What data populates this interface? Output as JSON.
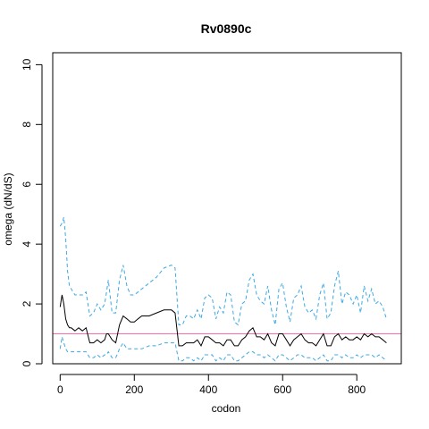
{
  "chart_data": {
    "type": "line",
    "title": "Rv0890c",
    "xlabel": "codon",
    "ylabel": "omega (dN/dS)",
    "xlim": [
      -20,
      920
    ],
    "ylim": [
      0,
      10.4
    ],
    "xticks": [
      0,
      200,
      400,
      600,
      800
    ],
    "yticks": [
      0,
      2,
      4,
      6,
      8,
      10
    ],
    "reference_line": {
      "y": 1,
      "color": "#ff6aa8"
    },
    "grid": false,
    "legend": "none",
    "series": [
      {
        "role": "upper",
        "color": "#3da9e4",
        "dashed": true,
        "x": [
          0,
          5,
          10,
          15,
          20,
          25,
          30,
          40,
          50,
          60,
          70,
          80,
          90,
          100,
          110,
          120,
          125,
          130,
          140,
          150,
          160,
          170,
          180,
          190,
          200,
          210,
          220,
          240,
          260,
          280,
          300,
          310,
          320,
          330,
          340,
          350,
          360,
          370,
          380,
          390,
          400,
          410,
          420,
          430,
          440,
          450,
          460,
          470,
          480,
          490,
          500,
          510,
          520,
          530,
          540,
          550,
          560,
          570,
          580,
          590,
          600,
          610,
          620,
          630,
          640,
          650,
          660,
          670,
          680,
          690,
          700,
          710,
          720,
          730,
          740,
          750,
          760,
          770,
          780,
          790,
          800,
          810,
          820,
          830,
          840,
          850,
          860,
          870,
          880
        ],
        "y": [
          4.6,
          4.7,
          4.9,
          4.2,
          3.1,
          2.6,
          2.5,
          2.3,
          2.3,
          2.3,
          2.4,
          1.6,
          1.7,
          2.0,
          1.8,
          2.0,
          2.4,
          2.8,
          1.7,
          1.7,
          2.8,
          3.3,
          2.6,
          2.3,
          2.3,
          2.4,
          2.5,
          2.7,
          2.9,
          3.2,
          3.3,
          3.2,
          1.3,
          1.3,
          1.6,
          1.6,
          1.5,
          1.8,
          1.5,
          2.2,
          2.3,
          2.2,
          1.5,
          1.9,
          1.7,
          2.4,
          2.3,
          1.4,
          1.3,
          2.0,
          2.1,
          2.8,
          3.0,
          2.3,
          2.1,
          2.0,
          2.6,
          1.8,
          1.3,
          2.5,
          2.7,
          1.9,
          1.4,
          2.2,
          2.3,
          2.6,
          1.9,
          1.7,
          1.8,
          1.5,
          2.3,
          2.7,
          1.5,
          1.7,
          2.6,
          3.1,
          2.0,
          2.4,
          2.3,
          2.0,
          2.3,
          1.7,
          2.6,
          2.1,
          2.5,
          2.0,
          2.1,
          1.9,
          1.5
        ]
      },
      {
        "role": "estimate",
        "color": "#000000",
        "dashed": false,
        "x": [
          0,
          5,
          10,
          15,
          20,
          25,
          30,
          40,
          50,
          60,
          70,
          80,
          90,
          100,
          110,
          120,
          125,
          130,
          140,
          150,
          160,
          170,
          180,
          190,
          200,
          210,
          220,
          240,
          260,
          280,
          300,
          310,
          320,
          330,
          340,
          350,
          360,
          370,
          380,
          390,
          400,
          410,
          420,
          430,
          440,
          450,
          460,
          470,
          480,
          490,
          500,
          510,
          520,
          530,
          540,
          550,
          560,
          570,
          580,
          590,
          600,
          610,
          620,
          630,
          640,
          650,
          660,
          670,
          680,
          690,
          700,
          710,
          720,
          730,
          740,
          750,
          760,
          770,
          780,
          790,
          800,
          810,
          820,
          830,
          840,
          850,
          860,
          870,
          880
        ],
        "y": [
          1.9,
          2.3,
          2.0,
          1.5,
          1.3,
          1.2,
          1.2,
          1.1,
          1.2,
          1.1,
          1.2,
          0.7,
          0.7,
          0.8,
          0.7,
          0.8,
          1.0,
          1.0,
          0.8,
          0.7,
          1.3,
          1.6,
          1.5,
          1.4,
          1.4,
          1.5,
          1.6,
          1.6,
          1.7,
          1.8,
          1.8,
          1.7,
          0.6,
          0.6,
          0.7,
          0.7,
          0.7,
          0.8,
          0.6,
          0.9,
          0.9,
          0.8,
          0.7,
          0.7,
          0.6,
          0.8,
          0.8,
          0.6,
          0.6,
          0.8,
          0.9,
          1.1,
          1.2,
          0.9,
          0.9,
          0.8,
          1.0,
          0.7,
          0.6,
          1.0,
          1.0,
          0.8,
          0.6,
          0.8,
          0.9,
          1.0,
          0.8,
          0.7,
          0.7,
          0.6,
          0.8,
          1.0,
          0.6,
          0.6,
          0.9,
          1.0,
          0.8,
          0.9,
          0.8,
          0.8,
          0.9,
          0.8,
          1.0,
          0.9,
          1.0,
          0.9,
          0.9,
          0.8,
          0.7
        ]
      },
      {
        "role": "lower",
        "color": "#3da9e4",
        "dashed": true,
        "x": [
          0,
          5,
          10,
          15,
          20,
          25,
          30,
          40,
          50,
          60,
          70,
          80,
          90,
          100,
          110,
          120,
          125,
          130,
          140,
          150,
          160,
          170,
          180,
          190,
          200,
          210,
          220,
          240,
          260,
          280,
          300,
          310,
          320,
          330,
          340,
          350,
          360,
          370,
          380,
          390,
          400,
          410,
          420,
          430,
          440,
          450,
          460,
          470,
          480,
          490,
          500,
          510,
          520,
          530,
          540,
          550,
          560,
          570,
          580,
          590,
          600,
          610,
          620,
          630,
          640,
          650,
          660,
          670,
          680,
          690,
          700,
          710,
          720,
          730,
          740,
          750,
          760,
          770,
          780,
          790,
          800,
          810,
          820,
          830,
          840,
          850,
          860,
          870,
          880
        ],
        "y": [
          0.5,
          0.9,
          0.7,
          0.5,
          0.4,
          0.4,
          0.4,
          0.4,
          0.4,
          0.4,
          0.4,
          0.2,
          0.2,
          0.3,
          0.2,
          0.3,
          0.3,
          0.4,
          0.2,
          0.2,
          0.5,
          0.7,
          0.5,
          0.5,
          0.5,
          0.5,
          0.5,
          0.6,
          0.6,
          0.7,
          0.7,
          0.7,
          0.1,
          0.1,
          0.2,
          0.2,
          0.1,
          0.2,
          0.1,
          0.3,
          0.3,
          0.3,
          0.1,
          0.2,
          0.1,
          0.3,
          0.3,
          0.1,
          0.1,
          0.2,
          0.3,
          0.4,
          0.4,
          0.3,
          0.3,
          0.2,
          0.3,
          0.2,
          0.1,
          0.3,
          0.3,
          0.2,
          0.1,
          0.2,
          0.3,
          0.3,
          0.2,
          0.2,
          0.2,
          0.1,
          0.2,
          0.3,
          0.1,
          0.1,
          0.3,
          0.3,
          0.2,
          0.3,
          0.2,
          0.2,
          0.3,
          0.2,
          0.3,
          0.3,
          0.3,
          0.2,
          0.3,
          0.2,
          0.1
        ]
      }
    ]
  }
}
